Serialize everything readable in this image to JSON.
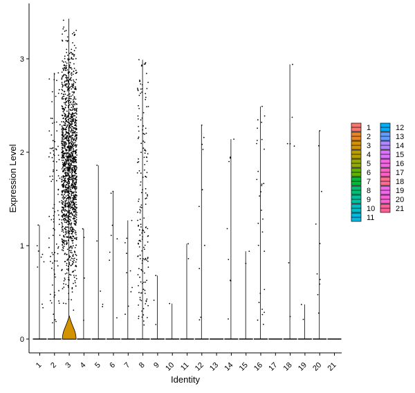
{
  "chart_data": {
    "type": "violin",
    "xlabel": "Identity",
    "ylabel": "Expression Level",
    "ylim": [
      -0.15,
      3.55
    ],
    "yticks": [
      0,
      1,
      2,
      3
    ],
    "categories": [
      "1",
      "2",
      "3",
      "4",
      "5",
      "6",
      "7",
      "8",
      "9",
      "10",
      "11",
      "12",
      "13",
      "14",
      "15",
      "16",
      "17",
      "18",
      "19",
      "20",
      "21"
    ],
    "colors": [
      "#F8766D",
      "#E88526",
      "#D39200",
      "#B79F00",
      "#93AA00",
      "#5EB300",
      "#00BA38",
      "#00BF74",
      "#00C19F",
      "#00BFC4",
      "#00B9E3",
      "#00ADFA",
      "#619CFF",
      "#AE87FF",
      "#DB72FB",
      "#F564E3",
      "#FF61C3",
      "#FF6C91",
      "#EF67EB",
      "#FB61D7",
      "#FF5F99"
    ],
    "legend_position": "right",
    "max_values": [
      1.22,
      2.85,
      3.43,
      1.18,
      1.86,
      1.58,
      1.27,
      2.99,
      0.68,
      0.38,
      1.02,
      2.29,
      0.0,
      2.14,
      0.94,
      2.49,
      0.0,
      2.94,
      0.37,
      2.23,
      0.0
    ],
    "nonzero_cell_counts": [
      9,
      100,
      1500,
      4,
      5,
      8,
      10,
      175,
      3,
      1,
      2,
      10,
      0,
      9,
      2,
      30,
      0,
      7,
      2,
      10,
      0
    ]
  }
}
